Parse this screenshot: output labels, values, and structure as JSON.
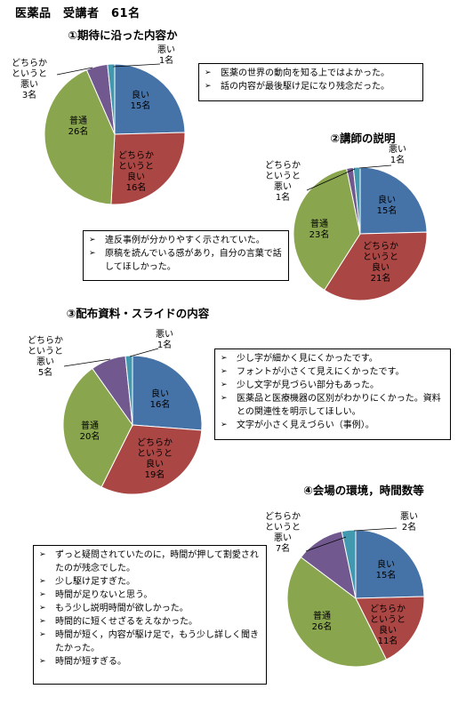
{
  "page_title": "医薬品　受講者　61名",
  "colors": {
    "good": "#4572A7",
    "somewhat_good": "#AA4643",
    "normal": "#89A54E",
    "somewhat_bad": "#71588F",
    "bad": "#4198AF"
  },
  "chart_data": [
    {
      "type": "pie",
      "title": "①期待に沿った内容か",
      "slices": [
        {
          "label": "良い",
          "count_label": "15名",
          "value": 15,
          "color": "#4572A7"
        },
        {
          "label": "どちらかというと良い",
          "count_label": "16名",
          "value": 16,
          "color": "#AA4643"
        },
        {
          "label": "普通",
          "count_label": "26名",
          "value": 26,
          "color": "#89A54E"
        },
        {
          "label": "どちらかというと悪い",
          "count_label": "3名",
          "value": 3,
          "color": "#71588F"
        },
        {
          "label": "悪い",
          "count_label": "1名",
          "value": 1,
          "color": "#4198AF"
        }
      ]
    },
    {
      "type": "pie",
      "title": "②講師の説明",
      "slices": [
        {
          "label": "良い",
          "count_label": "15名",
          "value": 15,
          "color": "#4572A7"
        },
        {
          "label": "どちらかというと良い",
          "count_label": "21名",
          "value": 21,
          "color": "#AA4643"
        },
        {
          "label": "普通",
          "count_label": "23名",
          "value": 23,
          "color": "#89A54E"
        },
        {
          "label": "どちらかというと悪い",
          "count_label": "1名",
          "value": 1,
          "color": "#71588F"
        },
        {
          "label": "悪い",
          "count_label": "1名",
          "value": 1,
          "color": "#4198AF"
        }
      ]
    },
    {
      "type": "pie",
      "title": "③配布資料・スライドの内容",
      "slices": [
        {
          "label": "良い",
          "count_label": "16名",
          "value": 16,
          "color": "#4572A7"
        },
        {
          "label": "どちらかというと良い",
          "count_label": "19名",
          "value": 19,
          "color": "#AA4643"
        },
        {
          "label": "普通",
          "count_label": "20名",
          "value": 20,
          "color": "#89A54E"
        },
        {
          "label": "どちらかというと悪い",
          "count_label": "5名",
          "value": 5,
          "color": "#71588F"
        },
        {
          "label": "悪い",
          "count_label": "1名",
          "value": 1,
          "color": "#4198AF"
        }
      ]
    },
    {
      "type": "pie",
      "title": "④会場の環境，時間数等",
      "slices": [
        {
          "label": "良い",
          "count_label": "15名",
          "value": 15,
          "color": "#4572A7"
        },
        {
          "label": "どちらかというと良い",
          "count_label": "11名",
          "value": 11,
          "color": "#AA4643"
        },
        {
          "label": "普通",
          "count_label": "26名",
          "value": 26,
          "color": "#89A54E"
        },
        {
          "label": "どちらかというと悪い",
          "count_label": "7名",
          "value": 7,
          "color": "#71588F"
        },
        {
          "label": "悪い",
          "count_label": "2名",
          "value": 2,
          "color": "#4198AF"
        }
      ]
    }
  ],
  "comments": [
    [
      "医薬の世界の動向を知る上ではよかった。",
      "話の内容が最後駆け足になり残念だった。"
    ],
    [
      "違反事例が分かりやすく示されていた。",
      "原稿を読んでいる感があり，自分の言葉で話してほしかった。"
    ],
    [
      "少し字が細かく見にくかったです。",
      "フォントが小さくて見えにくかったです。",
      "少し文字が見づらい部分もあった。",
      "医薬品と医療機器の区別がわかりにくかった。資料との関連性を明示してほしい。",
      "文字が小さく見えづらい（事例）。"
    ],
    [
      "ずっと疑問されていたのに，時間が押して割愛されたのが残念でした。",
      "少し駆け足すぎた。",
      "時間が足りないと思う。",
      "もう少し説明時間が欲しかった。",
      "時間的に短くせざるをえなかった。",
      "時間が短く，内容が駆け足で，もう少し詳しく聞きたかった。",
      "時間が短すぎる。"
    ]
  ]
}
